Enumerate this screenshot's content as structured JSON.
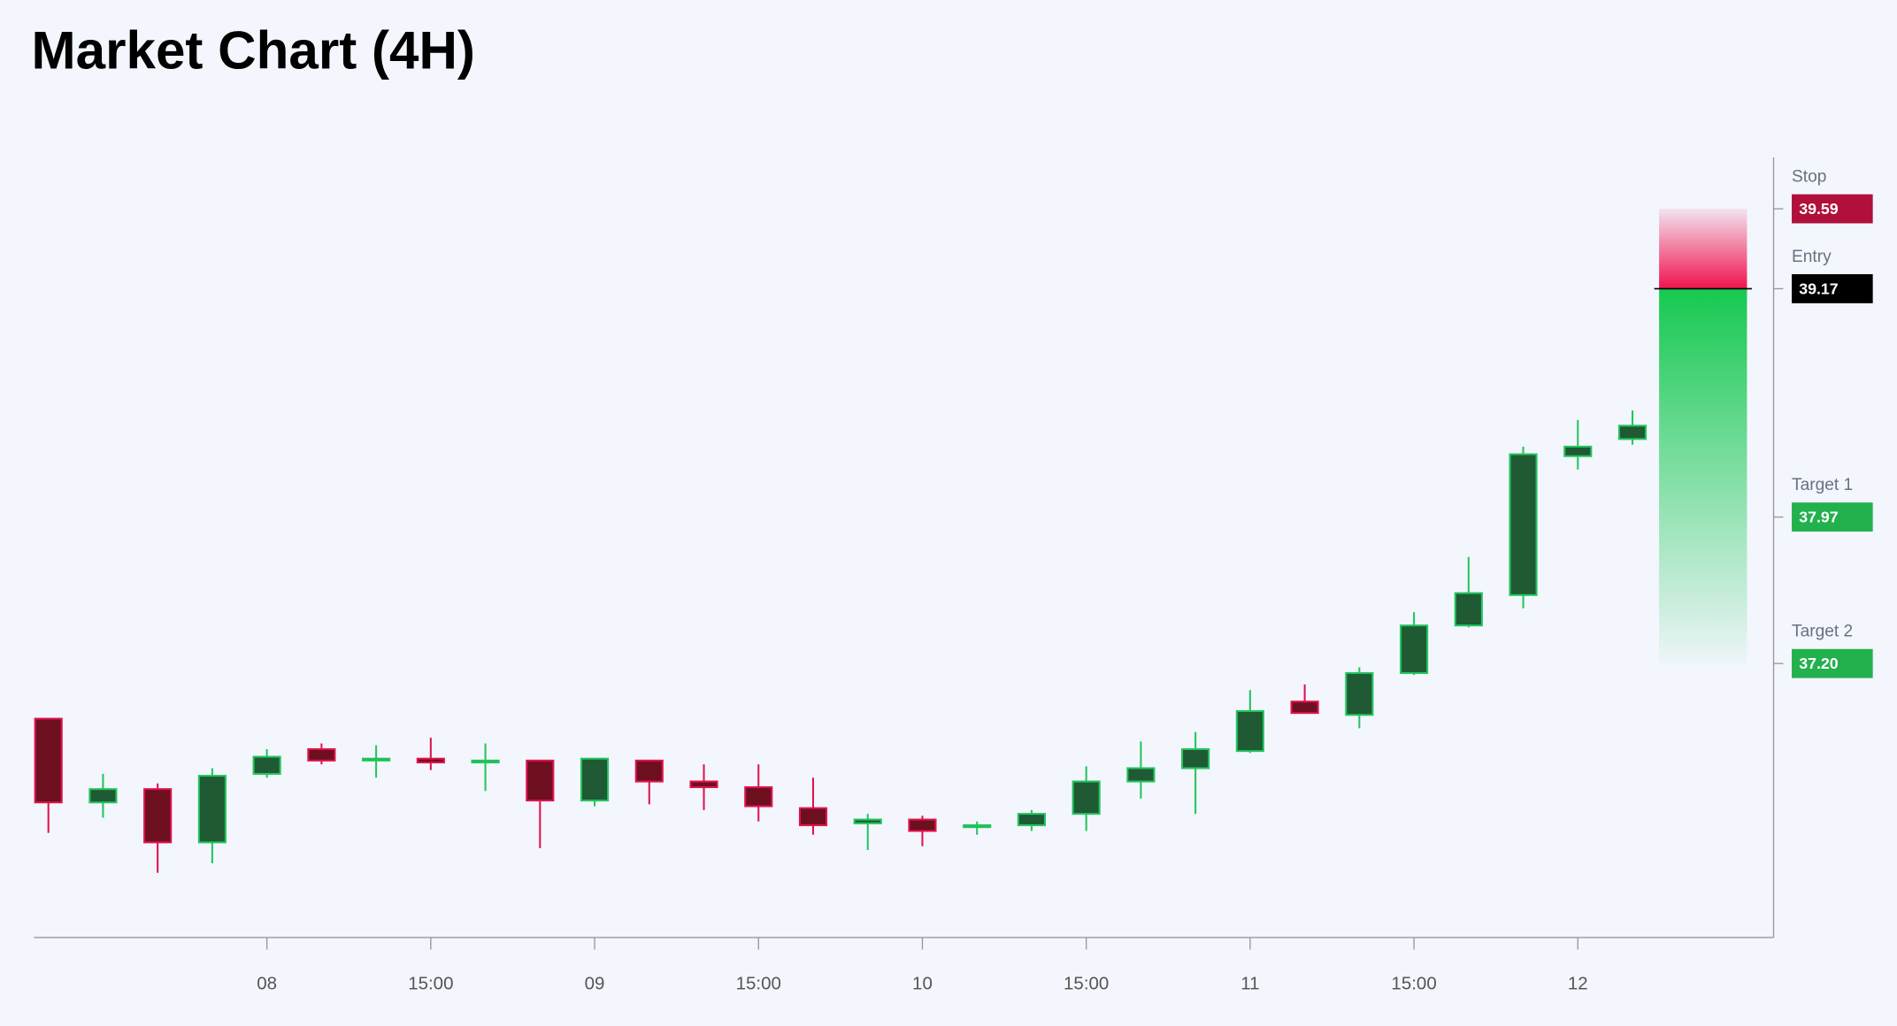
{
  "chart_data": {
    "type": "candlestick",
    "title": "Market Chart (4H)",
    "categories": [
      null,
      null,
      null,
      null,
      "08",
      null,
      null,
      "15:00",
      null,
      null,
      "09",
      null,
      null,
      "15:00",
      null,
      null,
      "10",
      null,
      null,
      "15:00",
      null,
      null,
      "11",
      null,
      null,
      "15:00",
      null,
      null,
      "12",
      null
    ],
    "open": [
      36.91,
      36.47,
      36.54,
      36.26,
      36.62,
      36.75,
      36.69,
      36.7,
      36.68,
      36.69,
      36.48,
      36.69,
      36.58,
      36.55,
      36.44,
      36.36,
      36.38,
      36.34,
      36.35,
      36.41,
      36.58,
      36.65,
      36.74,
      37.0,
      36.93,
      37.15,
      37.4,
      37.56,
      38.29,
      38.38
    ],
    "high": [
      36.91,
      36.62,
      36.57,
      36.65,
      36.75,
      36.78,
      36.77,
      36.81,
      36.78,
      36.69,
      36.7,
      36.69,
      36.67,
      36.67,
      36.6,
      36.41,
      36.4,
      36.37,
      36.43,
      36.66,
      36.79,
      36.84,
      37.06,
      37.09,
      37.18,
      37.47,
      37.76,
      38.34,
      38.48,
      38.53
    ],
    "low": [
      36.31,
      36.39,
      36.1,
      36.15,
      36.6,
      36.67,
      36.6,
      36.64,
      36.53,
      36.23,
      36.45,
      36.46,
      36.43,
      36.37,
      36.3,
      36.22,
      36.24,
      36.3,
      36.32,
      36.32,
      36.49,
      36.41,
      36.73,
      36.94,
      36.86,
      37.14,
      37.39,
      37.49,
      38.22,
      38.35
    ],
    "close": [
      36.47,
      36.54,
      36.26,
      36.61,
      36.71,
      36.69,
      36.7,
      36.68,
      36.69,
      36.48,
      36.7,
      36.58,
      36.55,
      36.45,
      36.35,
      36.38,
      36.32,
      36.35,
      36.41,
      36.58,
      36.65,
      36.75,
      36.95,
      36.94,
      37.15,
      37.4,
      37.57,
      38.3,
      38.34,
      38.45
    ],
    "up_color": "#22c55e",
    "up_fill": "#1f5a34",
    "down_color": "#e0134f",
    "down_fill": "#6e0f1f",
    "ylim": [
      35.76,
      39.86
    ],
    "levels": {
      "names": [
        "Stop",
        "Entry",
        "Target 1",
        "Target 2"
      ],
      "values": [
        39.59,
        39.17,
        37.97,
        37.2
      ],
      "value_labels": [
        "39.59",
        "39.17",
        "37.97",
        "37.20"
      ],
      "colors": [
        "#b0103a",
        "#000000",
        "#22b14c",
        "#22b14c"
      ]
    }
  }
}
